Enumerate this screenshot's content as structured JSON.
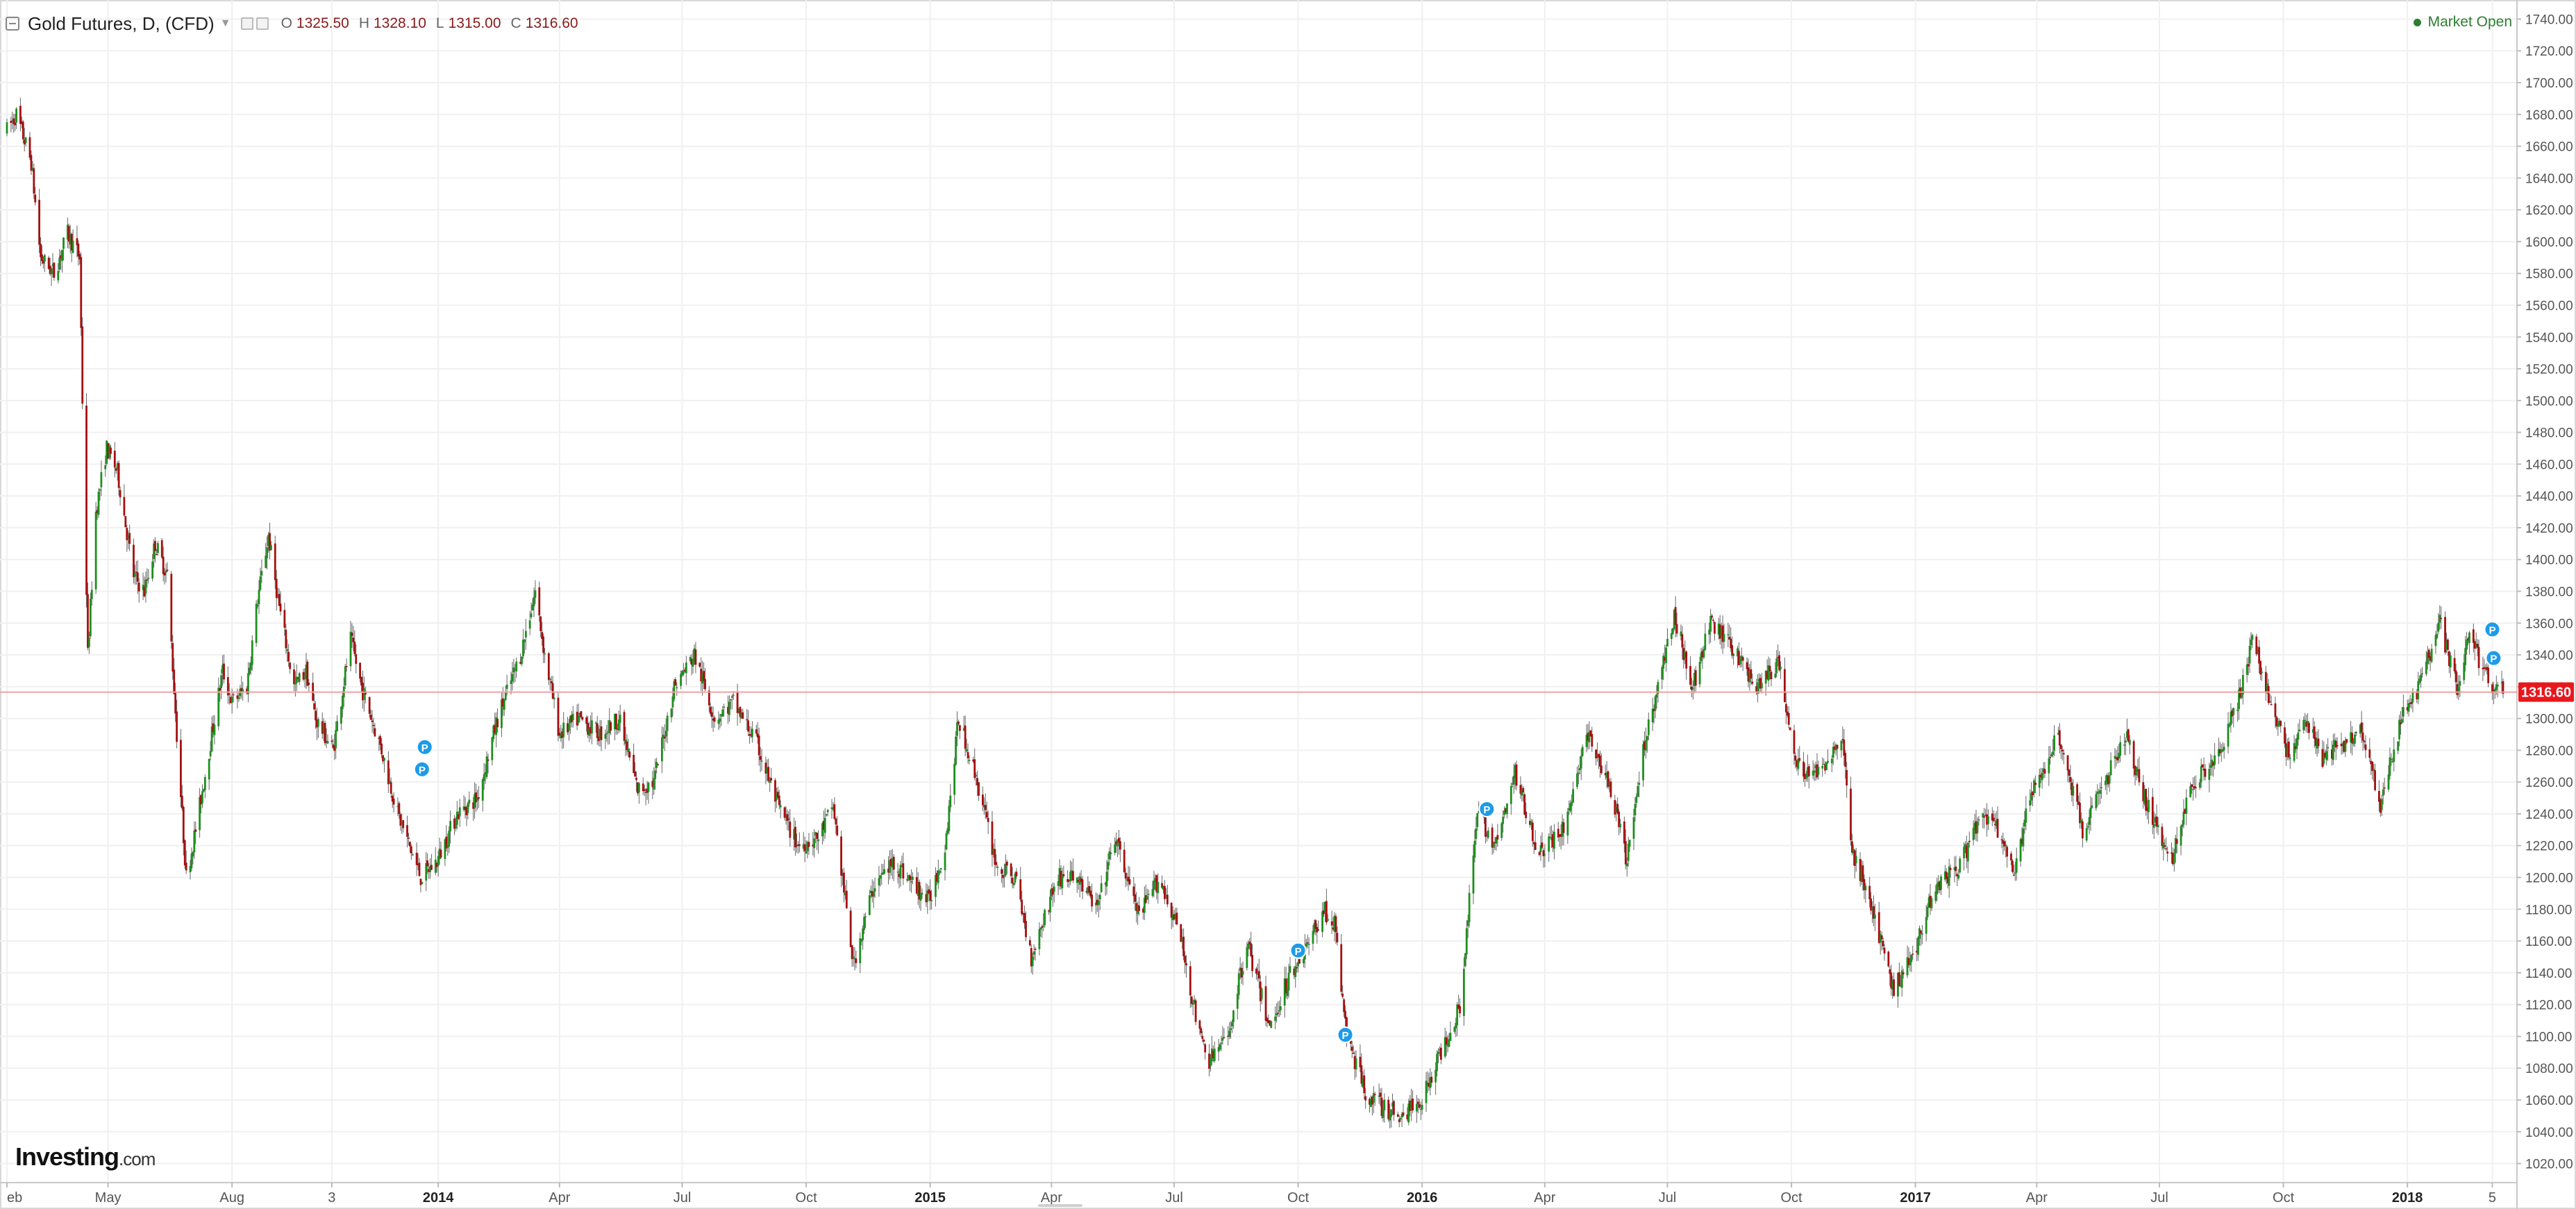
{
  "header": {
    "title": "Gold Futures, D, (CFD)",
    "ohlc": [
      {
        "label": "O",
        "value": "1325.50"
      },
      {
        "label": "H",
        "value": "1328.10"
      },
      {
        "label": "L",
        "value": "1315.00"
      },
      {
        "label": "C",
        "value": "1316.60"
      }
    ]
  },
  "status": {
    "market": "Market Open"
  },
  "logo": {
    "brand": "Investing",
    "suffix": ".com"
  },
  "colors": {
    "up": "#1e8f1e",
    "down": "#a50f0f",
    "wick": "#666666",
    "price_line": "#f4a0a0",
    "price_tag": "#e8171c",
    "grid": "#f0f0f0",
    "marker": "#1e9be8"
  },
  "chart_data": {
    "type": "candlestick",
    "symbol": "Gold Futures",
    "interval": "D",
    "ylim": [
      1008,
      1752
    ],
    "yticks": [
      "1020.00",
      "1040.00",
      "1060.00",
      "1080.00",
      "1100.00",
      "1120.00",
      "1140.00",
      "1160.00",
      "1180.00",
      "1200.00",
      "1220.00",
      "1240.00",
      "1260.00",
      "1280.00",
      "1300.00",
      "1320.00",
      "1340.00",
      "1360.00",
      "1380.00",
      "1400.00",
      "1420.00",
      "1440.00",
      "1460.00",
      "1480.00",
      "1500.00",
      "1520.00",
      "1540.00",
      "1560.00",
      "1580.00",
      "1600.00",
      "1620.00",
      "1640.00",
      "1660.00",
      "1680.00",
      "1700.00",
      "1720.00",
      "1740.00"
    ],
    "last_price": 1316.6,
    "last_price_label": "1316.60",
    "xlim": [
      "2013-02-15",
      "2018-03-13"
    ],
    "xticks": [
      {
        "date": "2013-02-15",
        "label": "eb"
      },
      {
        "date": "2013-05-01",
        "label": "May"
      },
      {
        "date": "2013-08-01",
        "label": "Aug"
      },
      {
        "date": "2013-10-14",
        "label": "3"
      },
      {
        "date": "2014-01-01",
        "label": "2014"
      },
      {
        "date": "2014-04-01",
        "label": "Apr"
      },
      {
        "date": "2014-07-01",
        "label": "Jul"
      },
      {
        "date": "2014-10-01",
        "label": "Oct"
      },
      {
        "date": "2015-01-01",
        "label": "2015"
      },
      {
        "date": "2015-04-01",
        "label": "Apr"
      },
      {
        "date": "2015-07-01",
        "label": "Jul"
      },
      {
        "date": "2015-10-01",
        "label": "Oct"
      },
      {
        "date": "2016-01-01",
        "label": "2016"
      },
      {
        "date": "2016-04-01",
        "label": "Apr"
      },
      {
        "date": "2016-07-01",
        "label": "Jul"
      },
      {
        "date": "2016-10-01",
        "label": "Oct"
      },
      {
        "date": "2017-01-01",
        "label": "2017"
      },
      {
        "date": "2017-04-01",
        "label": "Apr"
      },
      {
        "date": "2017-07-01",
        "label": "Jul"
      },
      {
        "date": "2017-10-01",
        "label": "Oct"
      },
      {
        "date": "2018-01-01",
        "label": "2018"
      },
      {
        "date": "2018-03-05",
        "label": "5"
      }
    ],
    "price_path": [
      [
        "2013-02-15",
        1670
      ],
      [
        "2013-02-22",
        1680
      ],
      [
        "2013-03-05",
        1650
      ],
      [
        "2013-03-12",
        1590
      ],
      [
        "2013-03-22",
        1580
      ],
      [
        "2013-04-01",
        1605
      ],
      [
        "2013-04-10",
        1590
      ],
      [
        "2013-04-12",
        1500
      ],
      [
        "2013-04-16",
        1340
      ],
      [
        "2013-04-22",
        1430
      ],
      [
        "2013-04-30",
        1470
      ],
      [
        "2013-05-08",
        1455
      ],
      [
        "2013-05-20",
        1390
      ],
      [
        "2013-05-28",
        1380
      ],
      [
        "2013-06-05",
        1410
      ],
      [
        "2013-06-14",
        1390
      ],
      [
        "2013-06-21",
        1290
      ],
      [
        "2013-06-28",
        1200
      ],
      [
        "2013-07-05",
        1230
      ],
      [
        "2013-07-15",
        1280
      ],
      [
        "2013-07-25",
        1330
      ],
      [
        "2013-08-01",
        1310
      ],
      [
        "2013-08-12",
        1320
      ],
      [
        "2013-08-20",
        1375
      ],
      [
        "2013-08-28",
        1415
      ],
      [
        "2013-09-05",
        1370
      ],
      [
        "2013-09-16",
        1320
      ],
      [
        "2013-09-25",
        1330
      ],
      [
        "2013-10-02",
        1300
      ],
      [
        "2013-10-15",
        1280
      ],
      [
        "2013-10-28",
        1350
      ],
      [
        "2013-11-05",
        1320
      ],
      [
        "2013-11-20",
        1280
      ],
      [
        "2013-12-02",
        1240
      ],
      [
        "2013-12-19",
        1200
      ],
      [
        "2013-12-31",
        1210
      ],
      [
        "2014-01-15",
        1240
      ],
      [
        "2014-01-30",
        1250
      ],
      [
        "2014-02-14",
        1300
      ],
      [
        "2014-03-03",
        1340
      ],
      [
        "2014-03-14",
        1380
      ],
      [
        "2014-03-21",
        1340
      ],
      [
        "2014-04-01",
        1290
      ],
      [
        "2014-04-15",
        1300
      ],
      [
        "2014-05-01",
        1290
      ],
      [
        "2014-05-15",
        1300
      ],
      [
        "2014-05-29",
        1255
      ],
      [
        "2014-06-10",
        1260
      ],
      [
        "2014-06-25",
        1320
      ],
      [
        "2014-07-10",
        1340
      ],
      [
        "2014-07-25",
        1300
      ],
      [
        "2014-08-08",
        1310
      ],
      [
        "2014-08-25",
        1285
      ],
      [
        "2014-09-10",
        1245
      ],
      [
        "2014-09-25",
        1220
      ],
      [
        "2014-10-10",
        1225
      ],
      [
        "2014-10-21",
        1245
      ],
      [
        "2014-11-05",
        1145
      ],
      [
        "2014-11-20",
        1195
      ],
      [
        "2014-12-05",
        1210
      ],
      [
        "2014-12-15",
        1200
      ],
      [
        "2014-12-31",
        1185
      ],
      [
        "2015-01-12",
        1220
      ],
      [
        "2015-01-22",
        1300
      ],
      [
        "2015-02-05",
        1260
      ],
      [
        "2015-02-20",
        1205
      ],
      [
        "2015-03-05",
        1200
      ],
      [
        "2015-03-17",
        1150
      ],
      [
        "2015-04-05",
        1200
      ],
      [
        "2015-04-20",
        1200
      ],
      [
        "2015-05-05",
        1180
      ],
      [
        "2015-05-18",
        1225
      ],
      [
        "2015-06-05",
        1175
      ],
      [
        "2015-06-20",
        1200
      ],
      [
        "2015-07-05",
        1165
      ],
      [
        "2015-07-20",
        1100
      ],
      [
        "2015-07-27",
        1085
      ],
      [
        "2015-08-10",
        1100
      ],
      [
        "2015-08-24",
        1160
      ],
      [
        "2015-09-10",
        1105
      ],
      [
        "2015-09-25",
        1140
      ],
      [
        "2015-10-10",
        1160
      ],
      [
        "2015-10-20",
        1180
      ],
      [
        "2015-10-28",
        1170
      ],
      [
        "2015-11-06",
        1100
      ],
      [
        "2015-11-20",
        1065
      ],
      [
        "2015-12-03",
        1055
      ],
      [
        "2015-12-17",
        1050
      ],
      [
        "2015-12-31",
        1060
      ],
      [
        "2016-01-15",
        1090
      ],
      [
        "2016-01-29",
        1120
      ],
      [
        "2016-02-11",
        1240
      ],
      [
        "2016-02-25",
        1220
      ],
      [
        "2016-03-10",
        1265
      ],
      [
        "2016-03-28",
        1215
      ],
      [
        "2016-04-15",
        1230
      ],
      [
        "2016-05-02",
        1290
      ],
      [
        "2016-05-18",
        1260
      ],
      [
        "2016-06-01",
        1210
      ],
      [
        "2016-06-15",
        1290
      ],
      [
        "2016-06-24",
        1320
      ],
      [
        "2016-07-06",
        1365
      ],
      [
        "2016-07-20",
        1320
      ],
      [
        "2016-08-02",
        1360
      ],
      [
        "2016-08-18",
        1345
      ],
      [
        "2016-09-05",
        1320
      ],
      [
        "2016-09-22",
        1335
      ],
      [
        "2016-10-04",
        1270
      ],
      [
        "2016-10-20",
        1265
      ],
      [
        "2016-11-08",
        1290
      ],
      [
        "2016-11-14",
        1220
      ],
      [
        "2016-11-28",
        1185
      ],
      [
        "2016-12-15",
        1130
      ],
      [
        "2016-12-30",
        1150
      ],
      [
        "2017-01-15",
        1195
      ],
      [
        "2017-02-01",
        1205
      ],
      [
        "2017-02-20",
        1240
      ],
      [
        "2017-03-03",
        1230
      ],
      [
        "2017-03-15",
        1200
      ],
      [
        "2017-03-27",
        1250
      ],
      [
        "2017-04-17",
        1290
      ],
      [
        "2017-05-05",
        1230
      ],
      [
        "2017-05-22",
        1260
      ],
      [
        "2017-06-06",
        1290
      ],
      [
        "2017-06-20",
        1250
      ],
      [
        "2017-07-10",
        1210
      ],
      [
        "2017-07-26",
        1260
      ],
      [
        "2017-08-15",
        1280
      ],
      [
        "2017-08-30",
        1315
      ],
      [
        "2017-09-08",
        1350
      ],
      [
        "2017-09-20",
        1315
      ],
      [
        "2017-10-05",
        1275
      ],
      [
        "2017-10-16",
        1300
      ],
      [
        "2017-10-30",
        1275
      ],
      [
        "2017-11-15",
        1285
      ],
      [
        "2017-11-28",
        1295
      ],
      [
        "2017-12-12",
        1245
      ],
      [
        "2017-12-29",
        1305
      ],
      [
        "2018-01-10",
        1320
      ],
      [
        "2018-01-25",
        1360
      ],
      [
        "2018-02-08",
        1315
      ],
      [
        "2018-02-15",
        1355
      ],
      [
        "2018-02-26",
        1330
      ],
      [
        "2018-03-06",
        1320
      ],
      [
        "2018-03-13",
        1316.6
      ]
    ],
    "event_markers": [
      {
        "date": "2013-12-20",
        "value": 1268,
        "label": "P"
      },
      {
        "date": "2013-12-22",
        "value": 1282,
        "label": "P"
      },
      {
        "date": "2016-02-18",
        "value": 1243,
        "label": "P"
      },
      {
        "date": "2015-10-01",
        "value": 1154,
        "label": "P"
      },
      {
        "date": "2015-11-05",
        "value": 1101,
        "label": "P"
      },
      {
        "date": "2018-03-05",
        "value": 1356,
        "label": "P"
      },
      {
        "date": "2018-03-06",
        "value": 1338,
        "label": "P"
      }
    ]
  }
}
